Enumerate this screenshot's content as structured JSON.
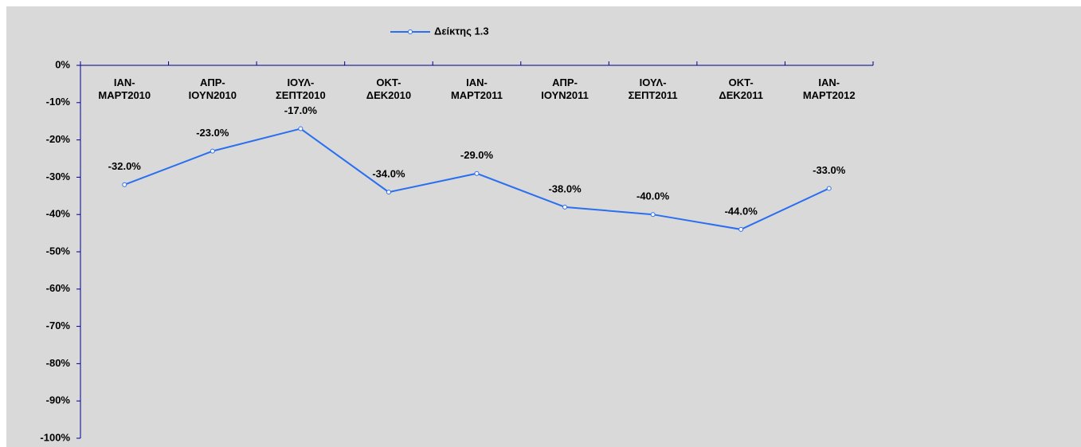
{
  "chart_data": {
    "type": "line",
    "categories": [
      "ΙΑΝ-ΜΑΡΤ2010",
      "ΑΠΡ-ΙΟΥΝ2010",
      "ΙΟΥΛ-ΣΕΠΤ2010",
      "ΟΚΤ-ΔΕΚ2010",
      "ΙΑΝ-ΜΑΡΤ2011",
      "ΑΠΡ-ΙΟΥΝ2011",
      "ΙΟΥΛ-ΣΕΠΤ2011",
      "ΟΚΤ-ΔΕΚ2011",
      "ΙΑΝ-ΜΑΡΤ2012"
    ],
    "series": [
      {
        "name": "Δείκτης 1.3",
        "color": "#2a6ff0",
        "values": [
          -32,
          -23,
          -17,
          -34,
          -29,
          -38,
          -40,
          -44,
          -33
        ],
        "value_labels": [
          "-32.0%",
          "-23.0%",
          "-17.0%",
          "-34.0%",
          "-29.0%",
          "-38.0%",
          "-40.0%",
          "-44.0%",
          "-33.0%"
        ]
      }
    ],
    "ylim": [
      -100,
      0
    ],
    "yticks": [
      {
        "value": 0,
        "label": "0%"
      },
      {
        "value": -10,
        "label": "-10%"
      },
      {
        "value": -20,
        "label": "-20%"
      },
      {
        "value": -30,
        "label": "-30%"
      },
      {
        "value": -40,
        "label": "-40%"
      },
      {
        "value": -50,
        "label": "-50%"
      },
      {
        "value": -60,
        "label": "-60%"
      },
      {
        "value": -70,
        "label": "-70%"
      },
      {
        "value": -80,
        "label": "-80%"
      },
      {
        "value": -90,
        "label": "-90%"
      },
      {
        "value": -100,
        "label": "-100%"
      }
    ],
    "legend": "top",
    "grid": false
  }
}
